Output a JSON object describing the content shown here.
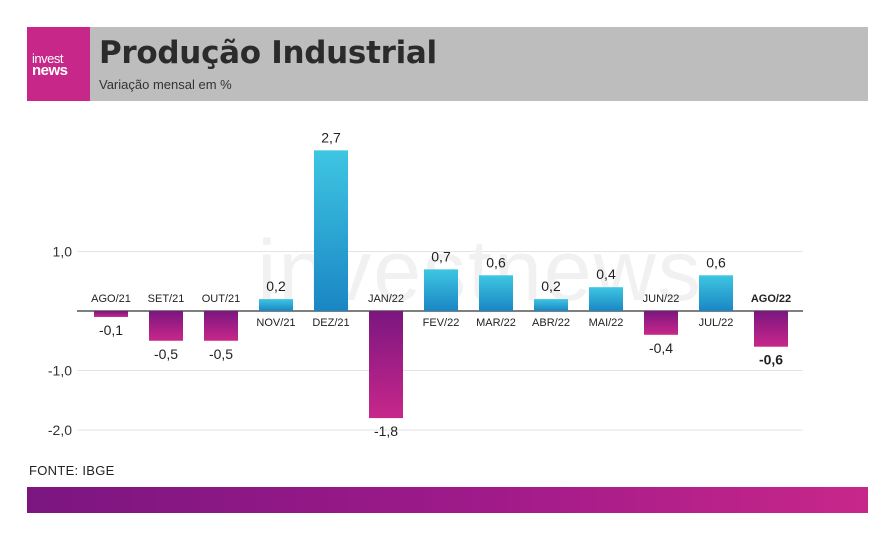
{
  "header": {
    "logo_line1": "invest",
    "logo_line2": "news",
    "title": "Produção Industrial",
    "subtitle": "Variação mensal em %"
  },
  "footer": {
    "source": "FONTE: IBGE"
  },
  "colors": {
    "positive_top": "#3ec6e2",
    "positive_bottom": "#1a86c4",
    "negative_top": "#7b1680",
    "negative_bottom": "#c8278a",
    "header_bg": "#bdbdbd",
    "logo_bg": "#c8278a"
  },
  "chart_data": {
    "type": "bar",
    "title": "Produção Industrial",
    "subtitle": "Variação mensal em %",
    "categories": [
      "AGO/21",
      "SET/21",
      "OUT/21",
      "NOV/21",
      "DEZ/21",
      "JAN/22",
      "FEV/22",
      "MAR/22",
      "ABR/22",
      "MAI/22",
      "JUN/22",
      "JUL/22",
      "AGO/22"
    ],
    "values": [
      -0.1,
      -0.5,
      -0.5,
      0.2,
      2.7,
      -1.8,
      0.7,
      0.6,
      0.2,
      0.4,
      -0.4,
      0.6,
      -0.6
    ],
    "value_labels": [
      "-0,1",
      "-0,5",
      "-0,5",
      "0,2",
      "2,7",
      "-1,8",
      "0,7",
      "0,6",
      "0,2",
      "0,4",
      "-0,4",
      "0,6",
      "-0,6"
    ],
    "highlight_index": 12,
    "yticks": [
      1.0,
      -1.0,
      -2.0
    ],
    "ytick_labels": [
      "1,0",
      "-1,0",
      "-2,0"
    ],
    "ylim": [
      -2.0,
      2.7
    ],
    "grid": true,
    "watermark": "investnews"
  }
}
